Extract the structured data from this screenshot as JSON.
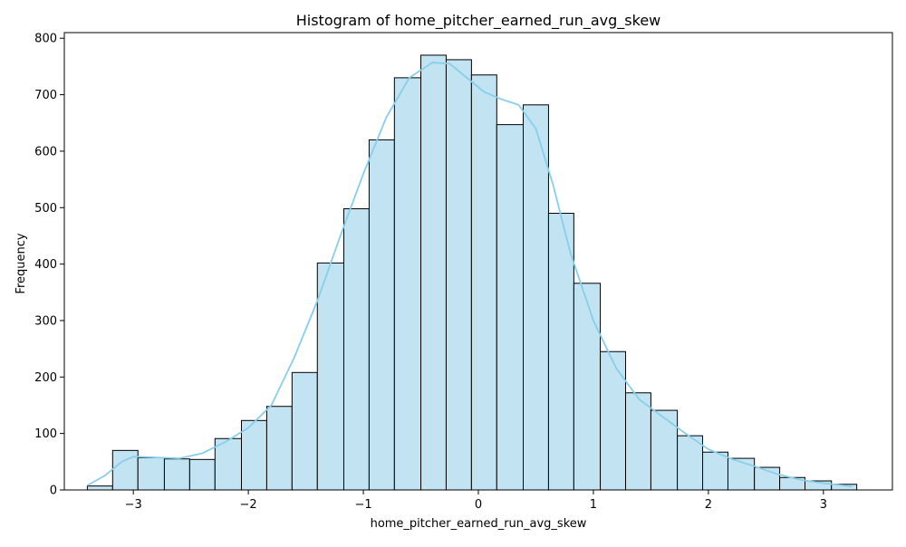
{
  "chart_data": {
    "type": "bar",
    "title": "Histogram of home_pitcher_earned_run_avg_skew",
    "xlabel": "home_pitcher_earned_run_avg_skew",
    "ylabel": "Frequency",
    "xlim": [
      -3.6,
      3.6
    ],
    "ylim": [
      0,
      810
    ],
    "xticks": [
      -3,
      -2,
      -1,
      0,
      1,
      2,
      3
    ],
    "xtick_labels": [
      "−3",
      "−2",
      "−1",
      "0",
      "1",
      "2",
      "3"
    ],
    "yticks": [
      0,
      100,
      200,
      300,
      400,
      500,
      600,
      700,
      800
    ],
    "ytick_labels": [
      "0",
      "100",
      "200",
      "300",
      "400",
      "500",
      "600",
      "700",
      "800"
    ],
    "grid": false,
    "bar_color": "#c2e4f2",
    "bar_edge_color": "#000000",
    "kde_color": "#87ceeb",
    "bins": [
      {
        "left": -3.4,
        "right": -3.18,
        "count": 7
      },
      {
        "left": -3.18,
        "right": -2.96,
        "count": 70
      },
      {
        "left": -2.96,
        "right": -2.73,
        "count": 57
      },
      {
        "left": -2.73,
        "right": -2.51,
        "count": 55
      },
      {
        "left": -2.51,
        "right": -2.29,
        "count": 54
      },
      {
        "left": -2.29,
        "right": -2.06,
        "count": 91
      },
      {
        "left": -2.06,
        "right": -1.84,
        "count": 123
      },
      {
        "left": -1.84,
        "right": -1.62,
        "count": 148
      },
      {
        "left": -1.62,
        "right": -1.4,
        "count": 208
      },
      {
        "left": -1.4,
        "right": -1.17,
        "count": 402
      },
      {
        "left": -1.17,
        "right": -0.95,
        "count": 498
      },
      {
        "left": -0.95,
        "right": -0.73,
        "count": 620
      },
      {
        "left": -0.73,
        "right": -0.5,
        "count": 730
      },
      {
        "left": -0.5,
        "right": -0.28,
        "count": 770
      },
      {
        "left": -0.28,
        "right": -0.06,
        "count": 762
      },
      {
        "left": -0.06,
        "right": 0.16,
        "count": 735
      },
      {
        "left": 0.16,
        "right": 0.39,
        "count": 647
      },
      {
        "left": 0.39,
        "right": 0.61,
        "count": 682
      },
      {
        "left": 0.61,
        "right": 0.83,
        "count": 490
      },
      {
        "left": 0.83,
        "right": 1.06,
        "count": 366
      },
      {
        "left": 1.06,
        "right": 1.28,
        "count": 245
      },
      {
        "left": 1.28,
        "right": 1.5,
        "count": 172
      },
      {
        "left": 1.5,
        "right": 1.73,
        "count": 141
      },
      {
        "left": 1.73,
        "right": 1.95,
        "count": 96
      },
      {
        "left": 1.95,
        "right": 2.17,
        "count": 67
      },
      {
        "left": 2.17,
        "right": 2.4,
        "count": 56
      },
      {
        "left": 2.4,
        "right": 2.62,
        "count": 40
      },
      {
        "left": 2.62,
        "right": 2.84,
        "count": 22
      },
      {
        "left": 2.84,
        "right": 3.07,
        "count": 16
      },
      {
        "left": 3.07,
        "right": 3.29,
        "count": 10
      }
    ],
    "kde": [
      {
        "x": -3.4,
        "y": 8
      },
      {
        "x": -3.25,
        "y": 25
      },
      {
        "x": -3.1,
        "y": 50
      },
      {
        "x": -3.0,
        "y": 59
      },
      {
        "x": -2.85,
        "y": 58
      },
      {
        "x": -2.6,
        "y": 56
      },
      {
        "x": -2.4,
        "y": 65
      },
      {
        "x": -2.2,
        "y": 85
      },
      {
        "x": -2.0,
        "y": 110
      },
      {
        "x": -1.8,
        "y": 150
      },
      {
        "x": -1.6,
        "y": 235
      },
      {
        "x": -1.4,
        "y": 335
      },
      {
        "x": -1.2,
        "y": 450
      },
      {
        "x": -1.0,
        "y": 560
      },
      {
        "x": -0.8,
        "y": 660
      },
      {
        "x": -0.6,
        "y": 730
      },
      {
        "x": -0.4,
        "y": 757
      },
      {
        "x": -0.25,
        "y": 755
      },
      {
        "x": -0.1,
        "y": 730
      },
      {
        "x": 0.05,
        "y": 705
      },
      {
        "x": 0.2,
        "y": 692
      },
      {
        "x": 0.35,
        "y": 682
      },
      {
        "x": 0.5,
        "y": 640
      },
      {
        "x": 0.65,
        "y": 540
      },
      {
        "x": 0.8,
        "y": 420
      },
      {
        "x": 1.0,
        "y": 300
      },
      {
        "x": 1.2,
        "y": 215
      },
      {
        "x": 1.4,
        "y": 160
      },
      {
        "x": 1.6,
        "y": 130
      },
      {
        "x": 1.8,
        "y": 100
      },
      {
        "x": 2.0,
        "y": 72
      },
      {
        "x": 2.2,
        "y": 55
      },
      {
        "x": 2.4,
        "y": 42
      },
      {
        "x": 2.6,
        "y": 28
      },
      {
        "x": 2.8,
        "y": 18
      },
      {
        "x": 3.0,
        "y": 12
      },
      {
        "x": 3.25,
        "y": 6
      }
    ]
  }
}
